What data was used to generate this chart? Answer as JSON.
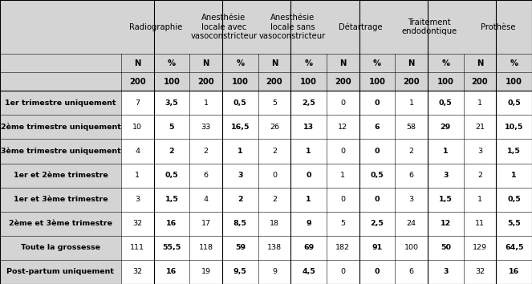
{
  "header_titles": [
    "",
    "Radiographie",
    "Anesthésie\nlocale avec\nvasoconstricteur",
    "Anesthésie\nlocale sans\nvasoconstricteur",
    "Détartrage",
    "Traitement\nendodontique",
    "Prothèse"
  ],
  "row_labels": [
    "1er trimestre uniquement",
    "2ème trimestre uniquement",
    "3ème trimestre uniquement",
    "1er et 2ème trimestre",
    "1er et 3ème trimestre",
    "2ème et 3ème trimestre",
    "Toute la grossesse",
    "Post-partum uniquement"
  ],
  "bold_row_labels": [
    0,
    1,
    2,
    3,
    4,
    5,
    6,
    7
  ],
  "data": [
    [
      "7",
      "3,5",
      "1",
      "0,5",
      "5",
      "2,5",
      "0",
      "0",
      "1",
      "0,5",
      "1",
      "0,5"
    ],
    [
      "10",
      "5",
      "33",
      "16,5",
      "26",
      "13",
      "12",
      "6",
      "58",
      "29",
      "21",
      "10,5"
    ],
    [
      "4",
      "2",
      "2",
      "1",
      "2",
      "1",
      "0",
      "0",
      "2",
      "1",
      "3",
      "1,5"
    ],
    [
      "1",
      "0,5",
      "6",
      "3",
      "0",
      "0",
      "1",
      "0,5",
      "6",
      "3",
      "2",
      "1"
    ],
    [
      "3",
      "1,5",
      "4",
      "2",
      "2",
      "1",
      "0",
      "0",
      "3",
      "1,5",
      "1",
      "0,5"
    ],
    [
      "32",
      "16",
      "17",
      "8,5",
      "18",
      "9",
      "5",
      "2,5",
      "24",
      "12",
      "11",
      "5,5"
    ],
    [
      "111",
      "55,5",
      "118",
      "59",
      "138",
      "69",
      "182",
      "91",
      "100",
      "50",
      "129",
      "64,5"
    ],
    [
      "32",
      "16",
      "19",
      "9,5",
      "9",
      "4,5",
      "0",
      "0",
      "6",
      "3",
      "32",
      "16"
    ]
  ],
  "bg_header": "#d4d4d4",
  "bg_row_label": "#d4d4d4",
  "bg_data": "#ffffff",
  "border_color": "#000000",
  "text_color": "#000000",
  "font_size": 6.8,
  "header_font_size": 7.2
}
